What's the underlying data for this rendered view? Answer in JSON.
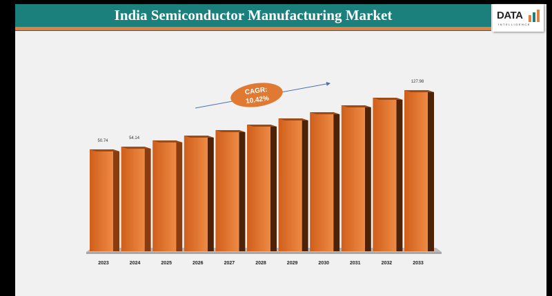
{
  "header": {
    "title": "India Semiconductor Manufacturing Market",
    "logo_text": "DATA",
    "logo_subtext": "INTELLIGENCE"
  },
  "colors": {
    "header": "#1b7f7c",
    "accent": "#e0823f",
    "bar_front": "#e07a33",
    "bar_side": "#6b2f0c"
  },
  "chart_data": {
    "type": "bar",
    "title": "",
    "categories": [
      "2023",
      "2024",
      "2025",
      "2026",
      "2027",
      "2028",
      "2029",
      "2030",
      "2031",
      "2032",
      "2033"
    ],
    "values": [
      50.74,
      54.14,
      62.4,
      68.7,
      75.8,
      83.0,
      91.1,
      99.2,
      108.2,
      118.1,
      127.98
    ],
    "data_labels": {
      "2023": "50.74",
      "2024": "54.14",
      "2033": "127.98"
    },
    "annotation": {
      "line1": "CAGR:",
      "line2": "10.42%"
    },
    "grid": false,
    "legend": "none",
    "style": "3d"
  }
}
